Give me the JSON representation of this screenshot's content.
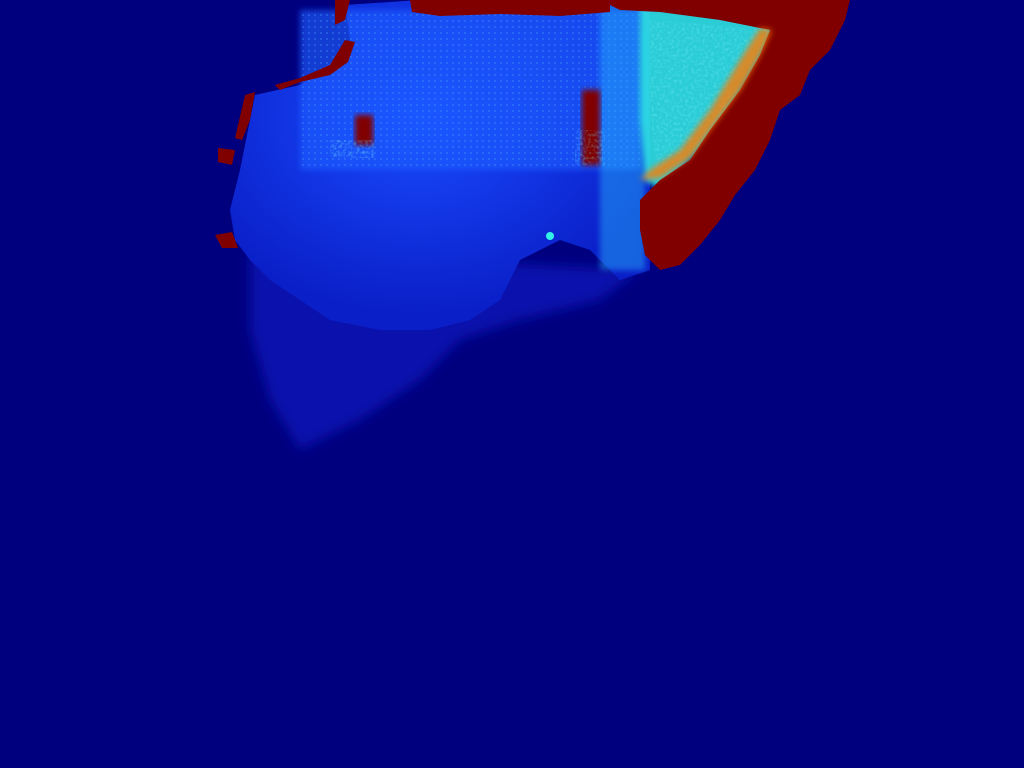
{
  "image": {
    "kind": "depth-error-heatmap",
    "colormap": "jet",
    "colors": {
      "background": "#00007f",
      "low": "#0a1fe0",
      "mid_low": "#1a5cff",
      "mid": "#26b8ff",
      "cyan": "#33f0e6",
      "yellow": "#ffe600",
      "orange": "#ff7a00",
      "high": "#800000"
    }
  }
}
